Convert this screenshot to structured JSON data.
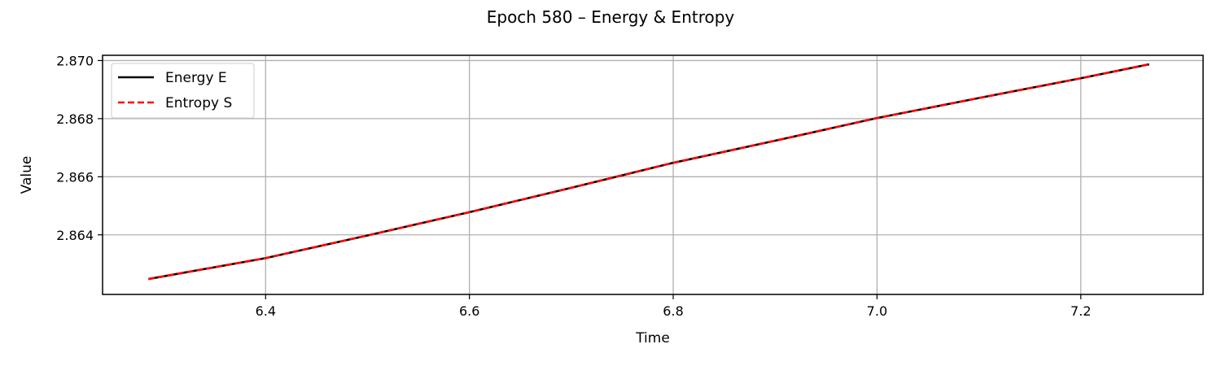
{
  "chart_data": {
    "type": "line",
    "title": "Epoch 580 – Energy & Entropy",
    "xlabel": "Time",
    "ylabel": "Value",
    "xlim": [
      6.24,
      7.32
    ],
    "ylim": [
      2.86195,
      2.87018
    ],
    "xticks": [
      6.4,
      6.6,
      6.8,
      7.0,
      7.2
    ],
    "xtick_labels": [
      "6.4",
      "6.6",
      "6.8",
      "7.0",
      "7.2"
    ],
    "yticks": [
      2.864,
      2.866,
      2.868,
      2.87
    ],
    "ytick_labels": [
      "2.864",
      "2.866",
      "2.868",
      "2.870"
    ],
    "grid": true,
    "legend_position": "top-left",
    "series": [
      {
        "name": "Energy E",
        "color": "#000000",
        "style": "solid",
        "x": [
          6.285,
          6.4,
          6.5,
          6.6,
          6.7,
          6.8,
          6.9,
          7.0,
          7.1,
          7.2,
          7.267
        ],
        "y": [
          2.86248,
          2.8632,
          2.86398,
          2.86478,
          2.86562,
          2.86648,
          2.86724,
          2.86802,
          2.86871,
          2.86939,
          2.86987
        ]
      },
      {
        "name": "Entropy S",
        "color": "#ff0000",
        "style": "dashed",
        "x": [
          6.285,
          6.4,
          6.5,
          6.6,
          6.7,
          6.8,
          6.9,
          7.0,
          7.1,
          7.2,
          7.267
        ],
        "y": [
          2.86248,
          2.8632,
          2.86398,
          2.86478,
          2.86562,
          2.86648,
          2.86724,
          2.86802,
          2.86871,
          2.86939,
          2.86987
        ]
      }
    ]
  }
}
